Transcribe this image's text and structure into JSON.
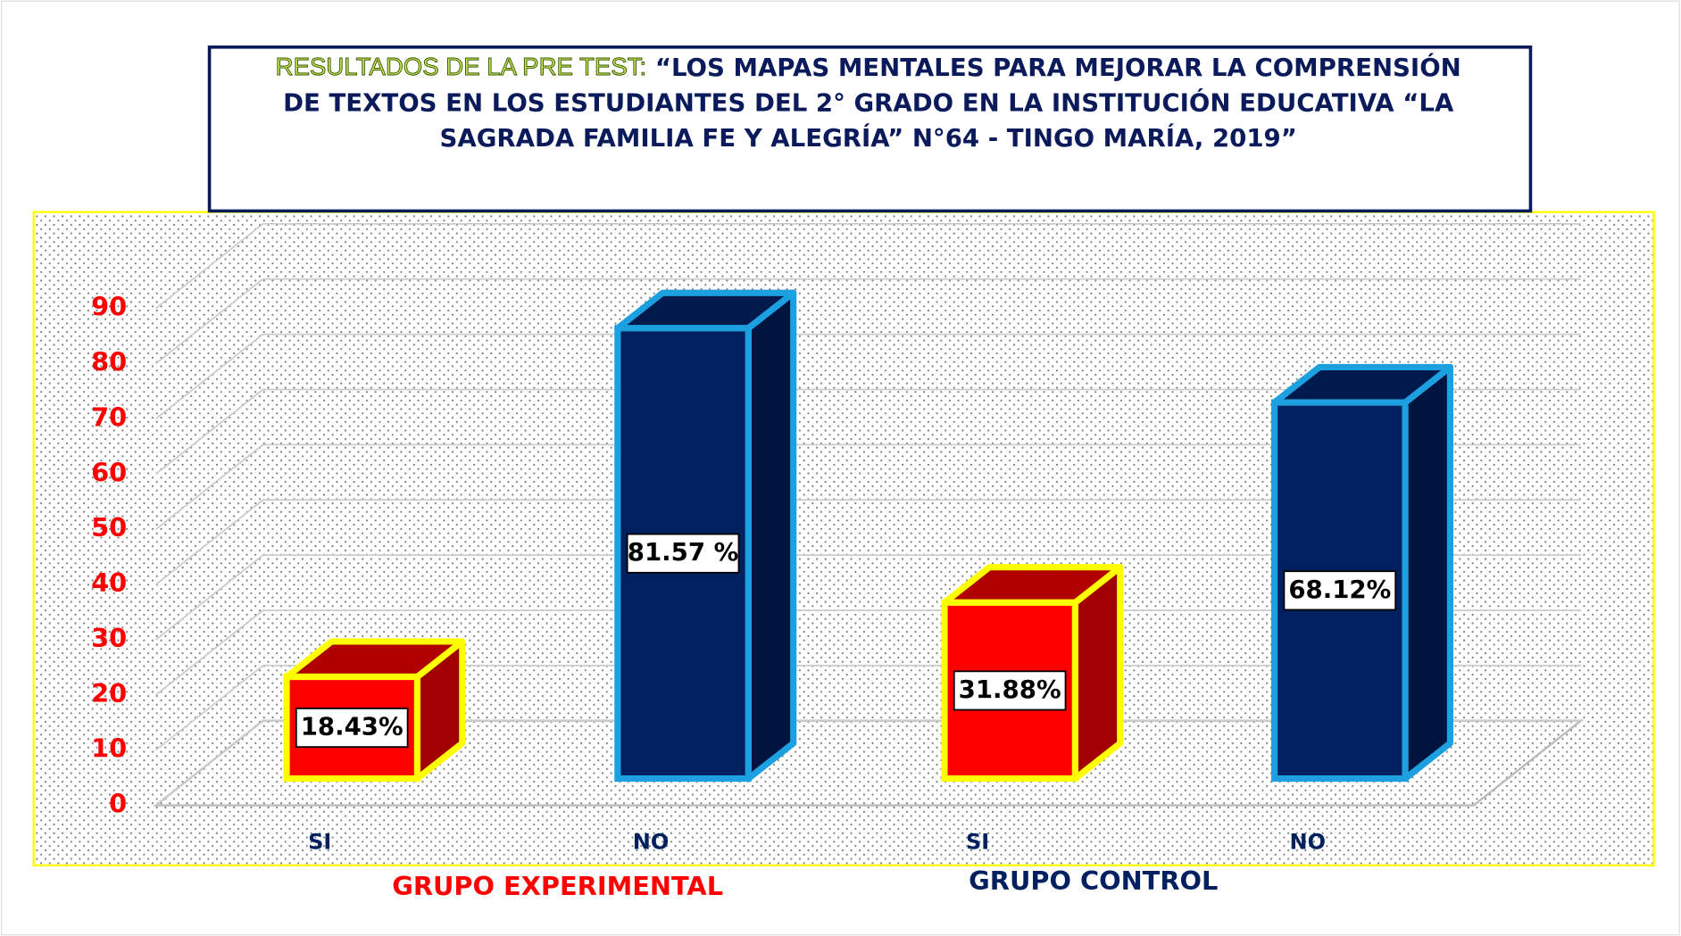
{
  "chart_data": {
    "type": "bar3d",
    "title_prefix": "RESULTADOS DE LA PRE TEST:",
    "title_lines": [
      "“LOS MAPAS MENTALES PARA MEJORAR LA COMPRENSIÓN",
      "DE TEXTOS EN LOS ESTUDIANTES DEL 2° GRADO EN LA INSTITUCIÓN EDUCATIVA “LA",
      "SAGRADA FAMILIA FE Y ALEGRÍA” N°64 - TINGO MARÍA, 2019”"
    ],
    "categories": [
      "SI",
      "NO",
      "SI",
      "NO"
    ],
    "values": [
      18.43,
      81.57,
      31.88,
      68.12
    ],
    "value_labels": [
      "18.43%",
      "81.57 %",
      "31.88%",
      "68.12%"
    ],
    "colors": [
      "#ff0000",
      "#002060",
      "#ff0000",
      "#002060"
    ],
    "groups": [
      "GRUPO EXPERIMENTAL",
      "GRUPO CONTROL"
    ],
    "group_colors": [
      "#ff0000",
      "#002060"
    ],
    "ylim": [
      0,
      90
    ],
    "yticks": [
      0,
      10,
      20,
      30,
      40,
      50,
      60,
      70,
      80,
      90
    ],
    "grid": true
  }
}
